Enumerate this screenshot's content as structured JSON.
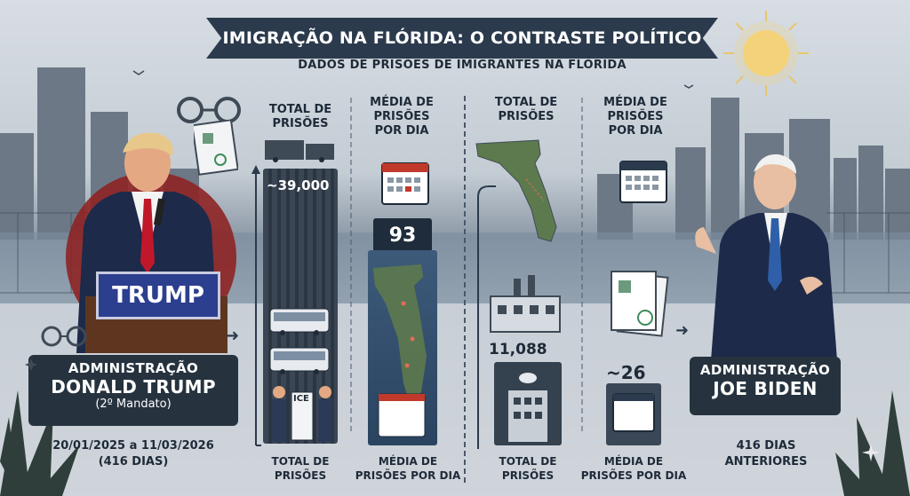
{
  "header": {
    "title": "IMIGRAÇÃO NA FLÓRIDA: O CONTRASTE POLÍTICO",
    "subtitle": "DADOS DE PRISÕES DE IMIGRANTES NA FLÓRIDA"
  },
  "trump": {
    "columns": {
      "total_head": "TOTAL DE\nPRISÕES",
      "media_head": "MÉDIA DE\nPRISÕES\nPOR DIA",
      "total_foot": "TOTAL DE\nPRISÕES",
      "media_foot": "MÉDIA DE\nPRISÕES POR DIA"
    },
    "total_value": "~39,000",
    "media_value": "93",
    "podium_sign": "TRUMP",
    "admin_l1": "ADMINISTRAÇÃO",
    "admin_l2": "DONALD TRUMP",
    "admin_l3": "(2º Mandato)",
    "date_range_l1": "20/01/2025 a 11/03/2026",
    "date_range_l2": "(416 DIAS)",
    "ice_label": "ICE"
  },
  "biden": {
    "columns": {
      "total_head": "TOTAL DE\nPRISÕES",
      "media_head": "MÉDIA DE\nPRISÕES\nPOR DIA",
      "total_foot": "TOTAL DE\nPRISÕES",
      "media_foot": "MÉDIA DE\nPRISÕES POR DIA"
    },
    "total_value": "11,088",
    "media_value": "~26",
    "admin_l1": "ADMINISTRAÇÃO",
    "admin_l2": "JOE BIDEN",
    "days_l1": "416 DIAS",
    "days_l2": "ANTERIORES"
  },
  "colors": {
    "navy": "#26333f",
    "banner": "#2b3a4c",
    "trump_sign": "#2c3e8e",
    "tie_red": "#c0182a",
    "tie_blue": "#2e5fa8",
    "red_circle": "#8e2424"
  },
  "chart_data": {
    "type": "bar",
    "title": "DADOS DE PRISÕES DE IMIGRANTES NA FLÓRIDA",
    "categories": [
      "TOTAL DE PRISÕES",
      "MÉDIA DE PRISÕES POR DIA"
    ],
    "series": [
      {
        "name": "DONALD TRUMP",
        "values": [
          39000,
          93
        ],
        "labels": [
          "~39,000",
          "93"
        ]
      },
      {
        "name": "JOE BIDEN",
        "values": [
          11088,
          26
        ],
        "labels": [
          "11,088",
          "~26"
        ]
      }
    ]
  }
}
